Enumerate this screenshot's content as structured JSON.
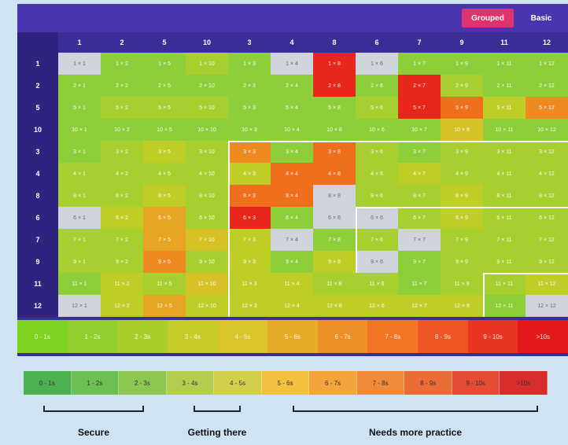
{
  "toolbar": {
    "grouped_label": "Grouped",
    "basic_label": "Basic"
  },
  "columns": [
    "1",
    "2",
    "5",
    "10",
    "3",
    "4",
    "8",
    "6",
    "7",
    "9",
    "11",
    "12"
  ],
  "rows": [
    "1",
    "2",
    "5",
    "10",
    "3",
    "4",
    "8",
    "6",
    "7",
    "9",
    "11",
    "12"
  ],
  "levels_colors": [
    "#cfd3dc",
    "#8ccf3a",
    "#a6cf2f",
    "#bfce27",
    "#d6c226",
    "#e6a624",
    "#ee8a1f",
    "#f06f1d",
    "#ef4d1c",
    "#e8261a"
  ],
  "levels_grid": [
    [
      0,
      1,
      1,
      2,
      1,
      0,
      9,
      0,
      1,
      1,
      1,
      1
    ],
    [
      1,
      1,
      1,
      1,
      1,
      1,
      9,
      1,
      9,
      2,
      1,
      1
    ],
    [
      1,
      2,
      2,
      2,
      1,
      1,
      1,
      2,
      9,
      7,
      3,
      6
    ],
    [
      1,
      1,
      1,
      1,
      1,
      1,
      1,
      1,
      1,
      4,
      1,
      1
    ],
    [
      1,
      2,
      3,
      2,
      6,
      1,
      7,
      2,
      1,
      2,
      2,
      2
    ],
    [
      2,
      2,
      2,
      2,
      3,
      7,
      7,
      2,
      3,
      2,
      2,
      2
    ],
    [
      2,
      2,
      3,
      2,
      7,
      7,
      0,
      2,
      2,
      3,
      2,
      2
    ],
    [
      0,
      3,
      5,
      2,
      9,
      1,
      0,
      0,
      2,
      3,
      2,
      2
    ],
    [
      2,
      2,
      5,
      4,
      3,
      0,
      1,
      2,
      0,
      2,
      2,
      2
    ],
    [
      2,
      2,
      6,
      2,
      3,
      1,
      3,
      0,
      1,
      2,
      2,
      2
    ],
    [
      1,
      3,
      2,
      4,
      3,
      3,
      2,
      2,
      1,
      2,
      2,
      3
    ],
    [
      0,
      3,
      5,
      3,
      3,
      3,
      3,
      3,
      3,
      3,
      1,
      0
    ]
  ],
  "legend_game": [
    "0 - 1s",
    "1 - 2s",
    "2 - 3s",
    "3 - 4s",
    "4 - 5s",
    "5 - 6s",
    "6 - 7s",
    "7 - 8s",
    "8 - 9s",
    "9 - 10s",
    ">10s"
  ],
  "legend_game_colors": [
    "#7ed321",
    "#92cf2d",
    "#a9ce2a",
    "#c6cd2b",
    "#d9c42a",
    "#e6ac28",
    "#ed9025",
    "#f07524",
    "#ef5623",
    "#ea3620",
    "#e3191a"
  ],
  "legend_key": [
    "0 - 1s",
    "1 - 2s",
    "2 - 3s",
    "3 - 4s",
    "4 - 5s",
    "5 - 6s",
    "6 - 7s",
    "7 - 8s",
    "8 - 9s",
    "9 - 10s",
    ">10s"
  ],
  "legend_key_colors": [
    "#4caf50",
    "#6cbf52",
    "#8cc653",
    "#b3cd4f",
    "#d3cf4c",
    "#f3c03f",
    "#f1a53c",
    "#ee8a3a",
    "#ea6c37",
    "#e44a34",
    "#d62d2d"
  ],
  "groups": {
    "secure": "Secure",
    "getting_there": "Getting there",
    "needs_practice": "Needs more practice"
  }
}
